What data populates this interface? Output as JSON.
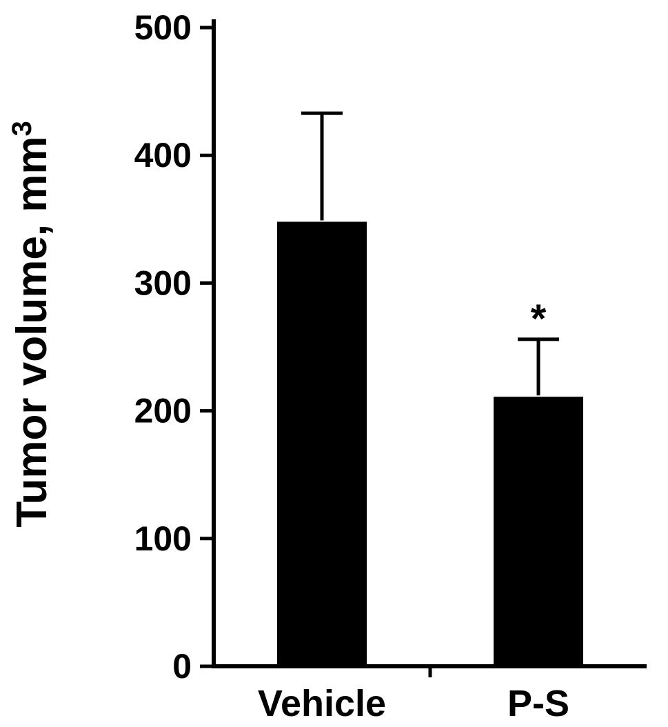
{
  "figure": {
    "background_color": "#ffffff",
    "axis_color": "#000000"
  },
  "chart_data": {
    "type": "bar",
    "title": "",
    "xlabel": "",
    "ylabel": "Tumor volume, mm³",
    "ylabel_base": "Tumor volume, mm",
    "ylabel_exponent": "3",
    "categories": [
      "Vehicle",
      "P-S"
    ],
    "values": [
      348,
      211
    ],
    "errors_upper": [
      85,
      45
    ],
    "ylim": [
      0,
      500
    ],
    "yticks": [
      0,
      100,
      200,
      300,
      400,
      500
    ],
    "bar_color": "#000000",
    "grid": false,
    "legend": "none",
    "annotations": [
      {
        "category": "P-S",
        "text": "*"
      }
    ]
  }
}
